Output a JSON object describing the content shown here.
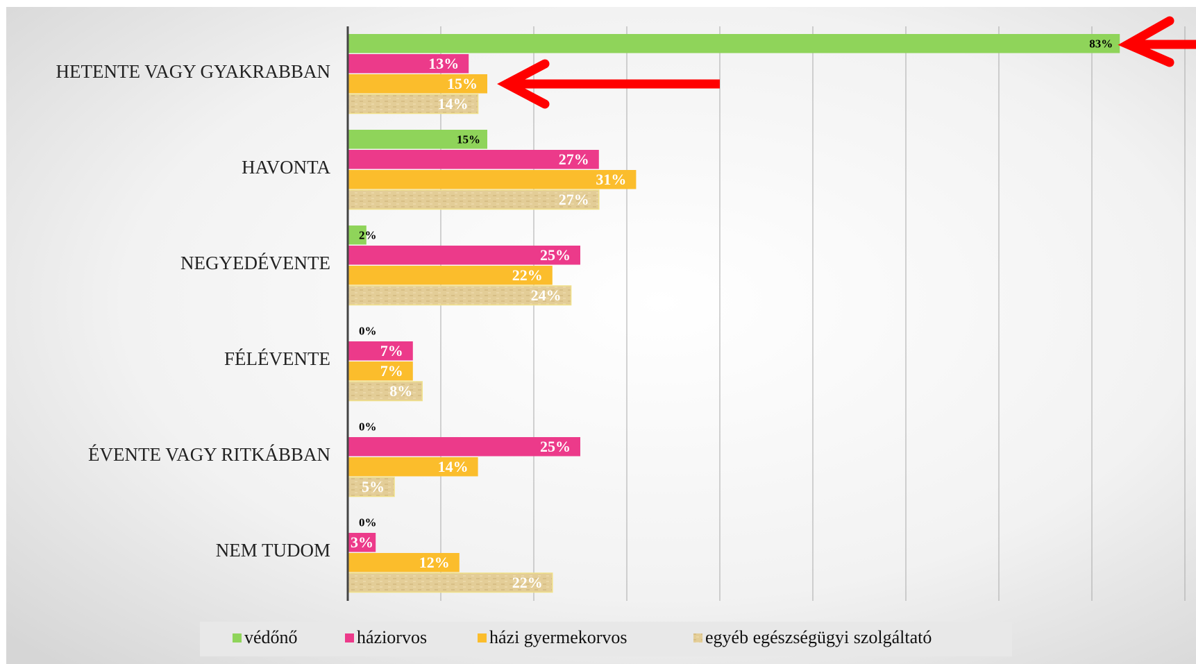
{
  "chart_data": {
    "type": "bar",
    "orientation": "horizontal",
    "categories": [
      "HETENTE VAGY GYAKRABBAN",
      "HAVONTA",
      "NEGYEDÉVENTE",
      "FÉLÉVENTE",
      "ÉVENTE  VAGY RITKÁBBAN",
      "NEM TUDOM"
    ],
    "series": [
      {
        "name": "védőnő",
        "color": "#8fd45a",
        "values": [
          83,
          15,
          2,
          0,
          0,
          0
        ],
        "value_labels": [
          "83%",
          "15%",
          "2%",
          "0%",
          "0%",
          "0%"
        ]
      },
      {
        "name": "háziorvos",
        "color": "#ec3a8a",
        "values": [
          13,
          27,
          25,
          7,
          25,
          3
        ],
        "value_labels": [
          "13%",
          "27%",
          "25%",
          "7%",
          "25%",
          "3%"
        ]
      },
      {
        "name": "házi gyermekorvos",
        "color": "#fbbd2c",
        "values": [
          15,
          31,
          22,
          7,
          14,
          12
        ],
        "value_labels": [
          "15%",
          "31%",
          "22%",
          "7%",
          "14%",
          "12%"
        ]
      },
      {
        "name": "egyéb egészségügyi szolgáltató",
        "color": "#dcc690",
        "values": [
          14,
          27,
          24,
          8,
          5,
          22
        ],
        "value_labels": [
          "14%",
          "27%",
          "24%",
          "8%",
          "5%",
          "22%"
        ]
      }
    ],
    "xlim": [
      0,
      90
    ],
    "xticks": [
      0,
      10,
      20,
      30,
      40,
      50,
      60,
      70,
      80,
      90
    ],
    "grid": true,
    "legend": "bottom"
  }
}
